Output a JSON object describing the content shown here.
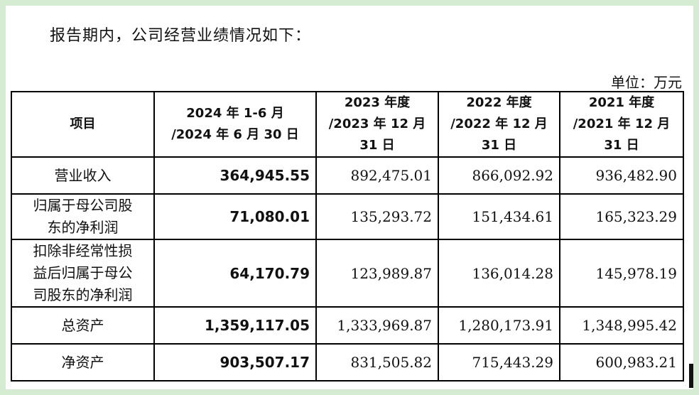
{
  "intro": "报告期内，公司经营业绩情况如下：",
  "unit": "单位：万元",
  "table": {
    "headers": {
      "item": "项目",
      "p2024_l1": "2024 年 1-6 月",
      "p2024_l2": "/2024 年 6 月 30 日",
      "p2023_l1": "2023 年度",
      "p2023_l2": "/2023 年 12 月",
      "p2023_l3": "31 日",
      "p2022_l1": "2022 年度",
      "p2022_l2": "/2022 年 12 月",
      "p2022_l3": "31 日",
      "p2021_l1": "2021 年度",
      "p2021_l2": "/2021 年 12 月",
      "p2021_l3": "31 日"
    },
    "rows": [
      {
        "l1": "营业收入",
        "l2": "",
        "l3": "",
        "v2024": "364,945.55",
        "v2023": "892,475.01",
        "v2022": "866,092.92",
        "v2021": "936,482.90"
      },
      {
        "l1": "归属于母公司股",
        "l2": "东的净利润",
        "l3": "",
        "v2024": "71,080.01",
        "v2023": "135,293.72",
        "v2022": "151,434.61",
        "v2021": "165,323.29"
      },
      {
        "l1": "扣除非经常性损",
        "l2": "益后归属于母公",
        "l3": "司股东的净利润",
        "v2024": "64,170.79",
        "v2023": "123,989.87",
        "v2022": "136,014.28",
        "v2021": "145,978.19"
      },
      {
        "l1": "总资产",
        "l2": "",
        "l3": "",
        "v2024": "1,359,117.05",
        "v2023": "1,333,969.87",
        "v2022": "1,280,173.91",
        "v2021": "1,348,995.42"
      },
      {
        "l1": "净资产",
        "l2": "",
        "l3": "",
        "v2024": "903,507.17",
        "v2023": "831,505.82",
        "v2022": "715,443.29",
        "v2021": "600,983.21"
      }
    ]
  }
}
